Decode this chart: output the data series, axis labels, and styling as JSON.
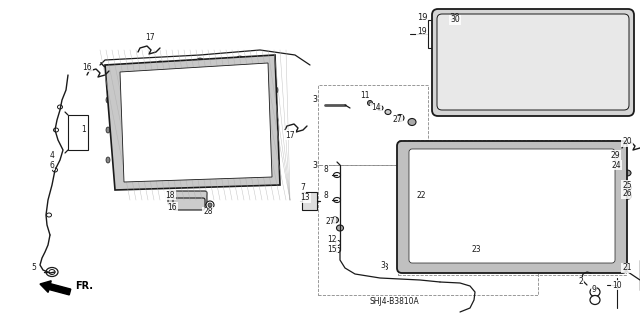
{
  "bg_color": "#ffffff",
  "fig_width": 6.4,
  "fig_height": 3.19,
  "diagram_code": "SHJ4-B3810A",
  "fr_label": "FR.",
  "dk": "#1a1a1a",
  "gray": "#888888",
  "lt_gray": "#bbbbbb",
  "hatch_color": "#999999"
}
